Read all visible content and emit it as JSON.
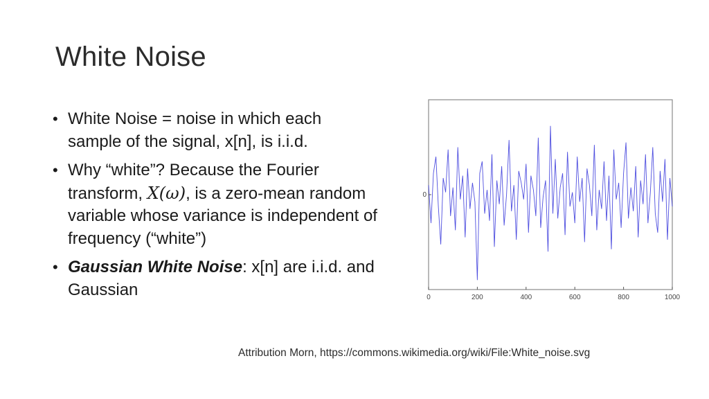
{
  "slide": {
    "title": "White Noise",
    "bullets": [
      {
        "text": "White Noise = noise in which each sample of the signal, x[n], is i.i.d."
      },
      {
        "pre": "Why “white”?  Because the Fourier transform, ",
        "math": "X(ω)",
        "post": ", is a zero-mean random variable whose variance is independent of frequency (“white”)"
      },
      {
        "em": "Gaussian White Noise",
        "post": ": x[n] are i.i.d. and Gaussian"
      }
    ],
    "attribution": "Attribution Morn, https://commons.wikimedia.org/wiki/File:White_noise.svg"
  },
  "chart_data": {
    "type": "line",
    "title": "",
    "xlabel": "",
    "ylabel": "",
    "xlim": [
      0,
      1000
    ],
    "ylim": [
      -4,
      4
    ],
    "x_ticks": [
      0,
      200,
      400,
      600,
      800,
      1000
    ],
    "y_ticks": [
      0
    ],
    "series_color": "#3b3bdb",
    "series": [
      {
        "name": "",
        "x_start": 0,
        "x_step": 10,
        "values": [
          0.4,
          -1.2,
          0.9,
          1.6,
          -0.5,
          -2.1,
          0.7,
          0.1,
          1.9,
          -0.9,
          0.3,
          -1.5,
          2.0,
          -0.2,
          0.8,
          -1.8,
          1.1,
          -0.6,
          0.5,
          -0.3,
          -3.6,
          0.9,
          1.4,
          -0.8,
          0.2,
          -1.1,
          1.7,
          -2.2,
          0.6,
          -0.4,
          1.2,
          -1.3,
          0.0,
          2.3,
          -0.7,
          0.4,
          -1.9,
          1.0,
          0.5,
          -0.2,
          1.3,
          -1.6,
          0.8,
          0.2,
          -0.9,
          2.4,
          -1.4,
          -0.1,
          0.6,
          -2.4,
          2.9,
          -0.8,
          1.5,
          -1.0,
          0.3,
          0.9,
          -1.7,
          1.8,
          -0.5,
          0.1,
          -1.2,
          1.6,
          -0.3,
          0.7,
          -2.0,
          1.1,
          0.4,
          -0.9,
          2.1,
          -1.5,
          0.2,
          -0.6,
          1.4,
          -1.1,
          0.8,
          -2.3,
          1.9,
          -0.2,
          0.5,
          -1.4,
          0.9,
          2.2,
          -1.0,
          0.3,
          -0.7,
          1.2,
          -1.8,
          0.6,
          -0.4,
          1.7,
          -1.2,
          0.1,
          2.0,
          -0.8,
          -1.6,
          1.0,
          -0.3,
          1.5,
          -1.9,
          0.7,
          -0.5
        ]
      }
    ]
  }
}
